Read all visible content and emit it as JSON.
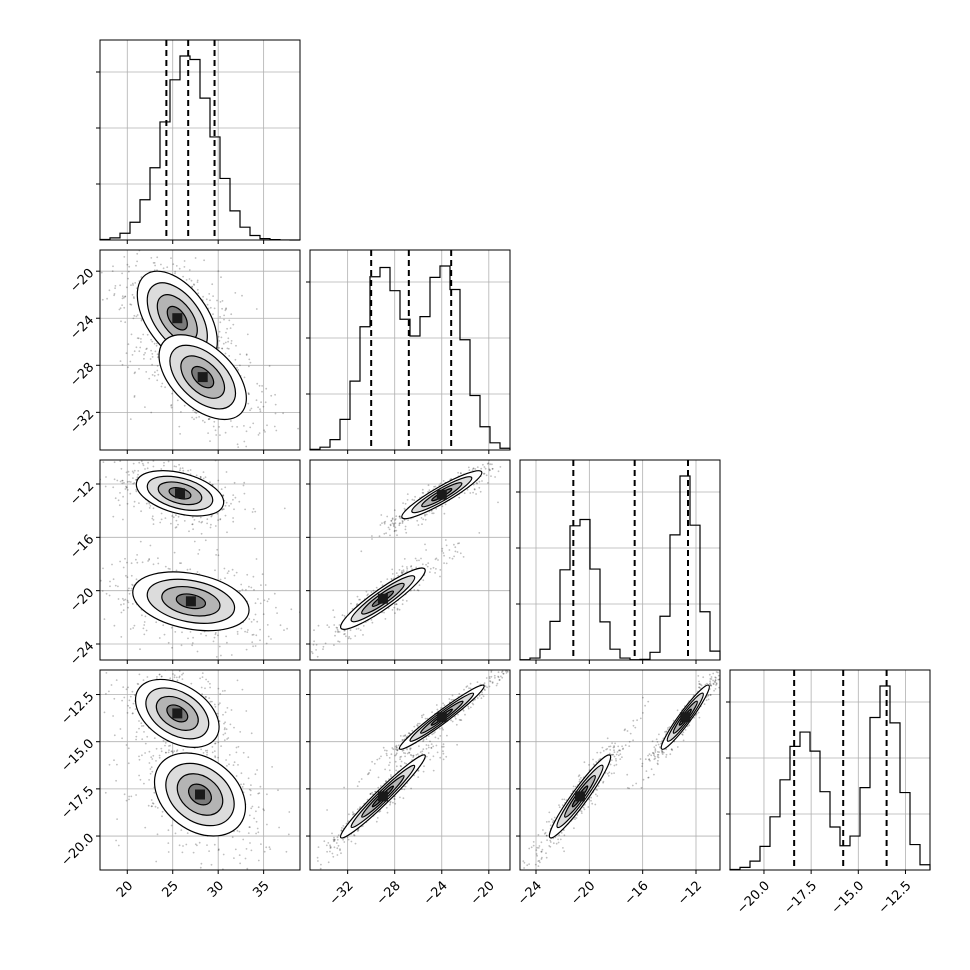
{
  "chart_data": {
    "type": "corner",
    "grid": true,
    "parameters": [
      {
        "range": [
          17,
          39
        ],
        "ticks": [
          20,
          25,
          30,
          35
        ],
        "tick_labels": [
          "20",
          "25",
          "30",
          "35"
        ],
        "quantiles": [
          24.3,
          26.7,
          29.6
        ],
        "modes": [
          {
            "mu": 26.7,
            "sigma": 2.7,
            "w": 1.0
          }
        ]
      },
      {
        "range": [
          -35.2,
          -18.2
        ],
        "ticks": [
          -32,
          -28,
          -24,
          -20
        ],
        "tick_labels": [
          "−32",
          "−28",
          "−24",
          "−20"
        ],
        "quantiles": [
          -30.0,
          -26.8,
          -23.2
        ],
        "modes": [
          {
            "mu": -29.0,
            "sigma": 1.7,
            "w": 0.5
          },
          {
            "mu": -23.8,
            "sigma": 1.7,
            "w": 0.5
          }
        ]
      },
      {
        "range": [
          -25.2,
          -10.2
        ],
        "ticks": [
          -24,
          -20,
          -16,
          -12
        ],
        "tick_labels": [
          "−24",
          "−20",
          "−16",
          "−12"
        ],
        "quantiles": [
          -21.2,
          -16.6,
          -12.6
        ],
        "modes": [
          {
            "mu": -20.7,
            "sigma": 1.15,
            "w": 0.5
          },
          {
            "mu": -12.8,
            "sigma": 0.9,
            "w": 0.5
          }
        ]
      },
      {
        "range": [
          -21.8,
          -11.2
        ],
        "ticks": [
          -20.0,
          -17.5,
          -15.0,
          -12.5
        ],
        "tick_labels": [
          "−20.0",
          "−17.5",
          "−15.0",
          "−12.5"
        ],
        "quantiles": [
          -18.4,
          -15.8,
          -13.5
        ],
        "modes": [
          {
            "mu": -17.9,
            "sigma": 1.1,
            "w": 0.5
          },
          {
            "mu": -13.6,
            "sigma": 0.8,
            "w": 0.5
          }
        ]
      }
    ],
    "pair_modes": {
      "1-0": [
        {
          "mx": 25.5,
          "my": -24.0,
          "sx": 2.2,
          "sy": 2.0,
          "rho": -0.5
        },
        {
          "mx": 28.3,
          "my": -29.0,
          "sx": 2.4,
          "sy": 1.8,
          "rho": -0.5
        }
      ],
      "2-0": [
        {
          "mx": 25.8,
          "my": -12.7,
          "sx": 2.4,
          "sy": 0.85,
          "rho": -0.4
        },
        {
          "mx": 27.0,
          "my": -20.8,
          "sx": 3.2,
          "sy": 1.1,
          "rho": -0.3
        }
      ],
      "3-0": [
        {
          "mx": 25.5,
          "my": -13.5,
          "sx": 2.3,
          "sy": 0.9,
          "rho": -0.4
        },
        {
          "mx": 28.0,
          "my": -17.8,
          "sx": 2.5,
          "sy": 1.1,
          "rho": -0.3
        }
      ],
      "2-1": [
        {
          "mx": -24.0,
          "my": -12.8,
          "sx": 1.7,
          "sy": 0.9,
          "rho": 0.92
        },
        {
          "mx": -29.0,
          "my": -20.6,
          "sx": 1.8,
          "sy": 1.15,
          "rho": 0.92
        }
      ],
      "3-1": [
        {
          "mx": -24.0,
          "my": -13.7,
          "sx": 1.8,
          "sy": 0.85,
          "rho": 0.97
        },
        {
          "mx": -29.0,
          "my": -17.9,
          "sx": 1.8,
          "sy": 1.1,
          "rho": 0.97
        }
      ],
      "3-2": [
        {
          "mx": -12.8,
          "my": -13.7,
          "sx": 0.9,
          "sy": 0.85,
          "rho": 0.95
        },
        {
          "mx": -20.7,
          "my": -17.9,
          "sx": 1.15,
          "sy": 1.1,
          "rho": 0.95
        }
      ]
    },
    "contour_levels_sigma": [
      0.5,
      1.0,
      1.5,
      2.0
    ]
  }
}
